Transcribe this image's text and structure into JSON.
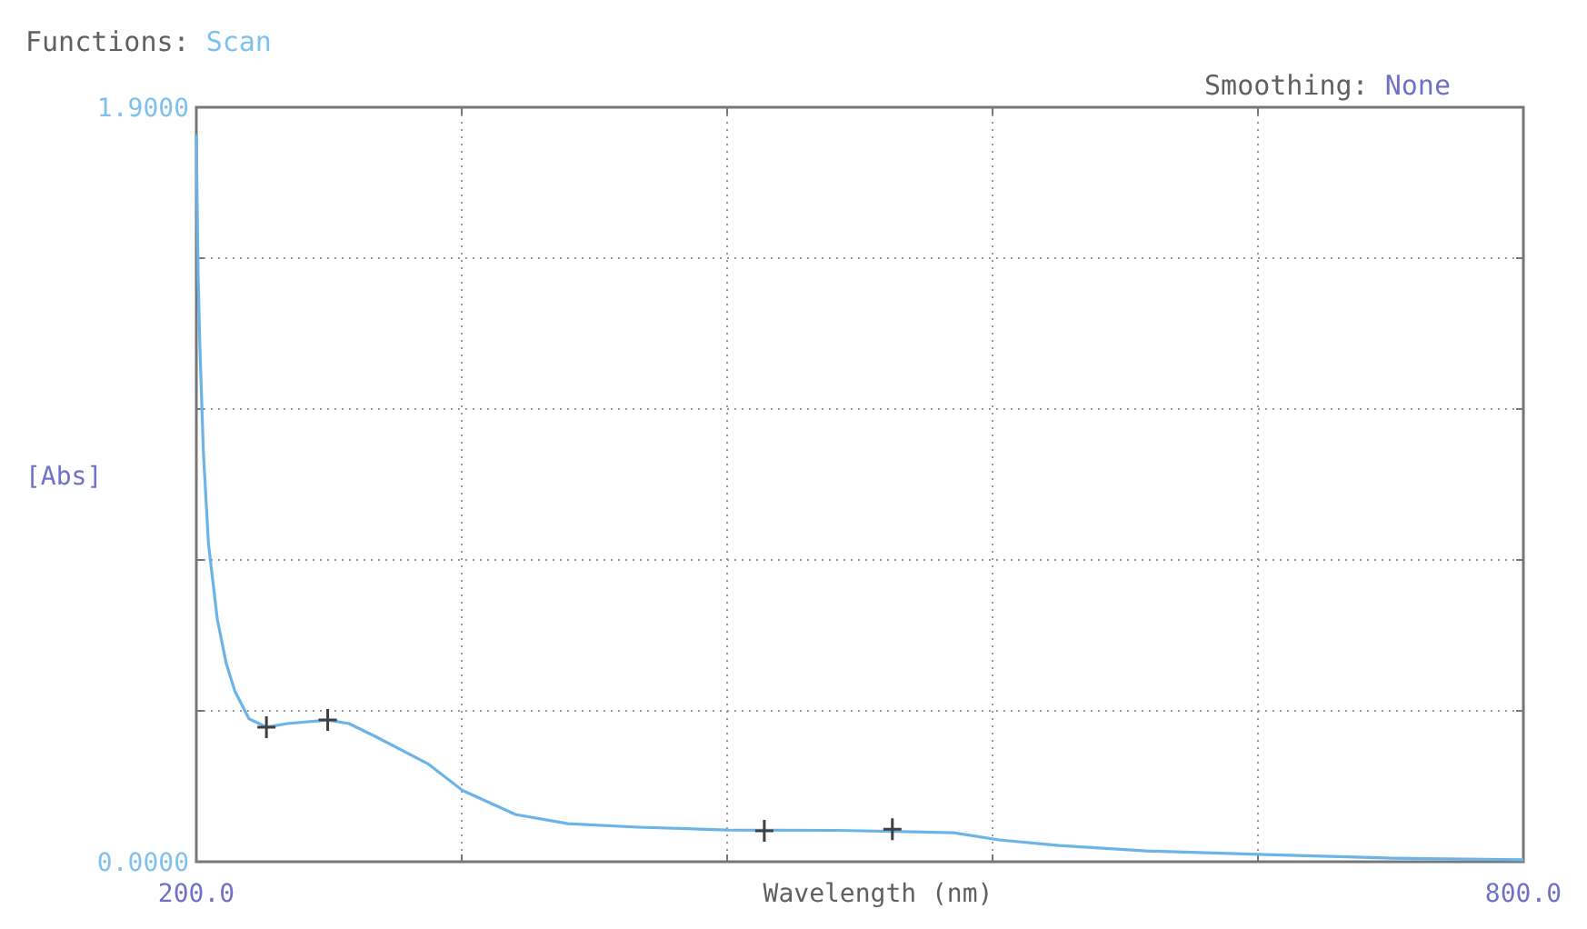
{
  "chart_data": {
    "type": "line",
    "title": "Functions: Scan",
    "subtitle": "Smoothing: None",
    "xlabel": "Wavelength (nm)",
    "ylabel": "[Abs]",
    "xlim": [
      200,
      800
    ],
    "xticks": [
      {
        "value": 200,
        "label": "200.0"
      },
      {
        "value": 320,
        "label": null
      },
      {
        "value": 440,
        "label": null
      },
      {
        "value": 560,
        "label": null
      },
      {
        "value": 680,
        "label": null
      },
      {
        "value": 800,
        "label": "800.0"
      }
    ],
    "ylim": [
      0,
      1.9
    ],
    "yticks": [
      {
        "value": 0,
        "label": "0.0000"
      },
      {
        "value": 0.38,
        "label": null
      },
      {
        "value": 0.76,
        "label": null
      },
      {
        "value": 1.14,
        "label": null
      },
      {
        "value": 1.52,
        "label": null
      },
      {
        "value": 1.9,
        "label": "1.9000"
      }
    ],
    "grid": true,
    "series": [
      {
        "color": "#6cb4e8",
        "marker": "none",
        "x": [
          200,
          200.8,
          201.6,
          203.2,
          205.5,
          209.5,
          213.5,
          217.4,
          223.8,
          231.7,
          241.2,
          259.4,
          269,
          280.8,
          304.6,
          320.5,
          344.3,
          368,
          399.7,
          440,
          490,
          542.4,
          563,
          590,
          629.6,
          683.5,
          740.5,
          800
        ],
        "values": [
          1.83,
          1.48,
          1.3,
          1.03,
          0.8,
          0.61,
          0.5,
          0.43,
          0.36,
          0.339,
          0.348,
          0.357,
          0.348,
          0.316,
          0.247,
          0.179,
          0.119,
          0.096,
          0.087,
          0.08,
          0.079,
          0.073,
          0.055,
          0.041,
          0.027,
          0.018,
          0.009,
          0.005
        ]
      },
      {
        "type": "scatter",
        "color": "#404040",
        "marker": "cross",
        "x": [
          231.7,
          259.4,
          456.8,
          514.7
        ],
        "values": [
          0.339,
          0.357,
          0.078,
          0.082
        ]
      }
    ]
  }
}
